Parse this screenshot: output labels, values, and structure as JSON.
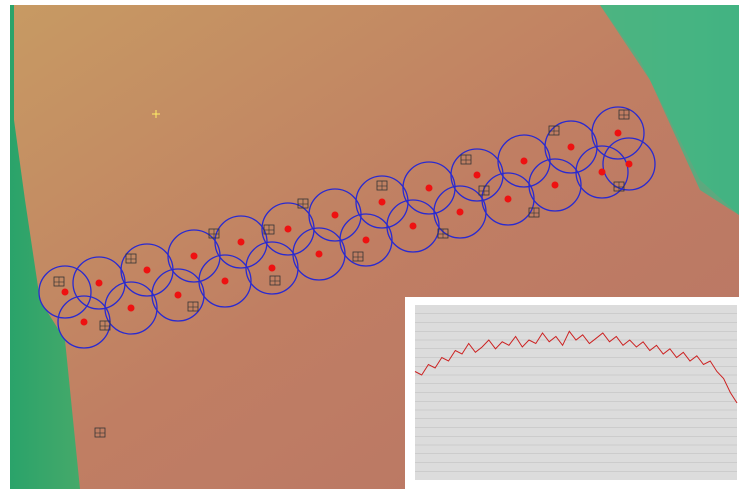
{
  "chart_data": {
    "type": "line",
    "ylim": [
      0,
      100
    ],
    "grid": true,
    "series": [
      {
        "color": "#cc2222",
        "values": [
          62,
          60,
          66,
          64,
          70,
          68,
          74,
          72,
          78,
          73,
          76,
          80,
          75,
          79,
          77,
          82,
          76,
          80,
          78,
          84,
          79,
          82,
          77,
          85,
          80,
          83,
          78,
          81,
          84,
          79,
          82,
          77,
          80,
          76,
          79,
          74,
          77,
          72,
          75,
          70,
          73,
          68,
          71,
          66,
          68,
          62,
          58,
          50,
          44
        ]
      }
    ]
  }
}
